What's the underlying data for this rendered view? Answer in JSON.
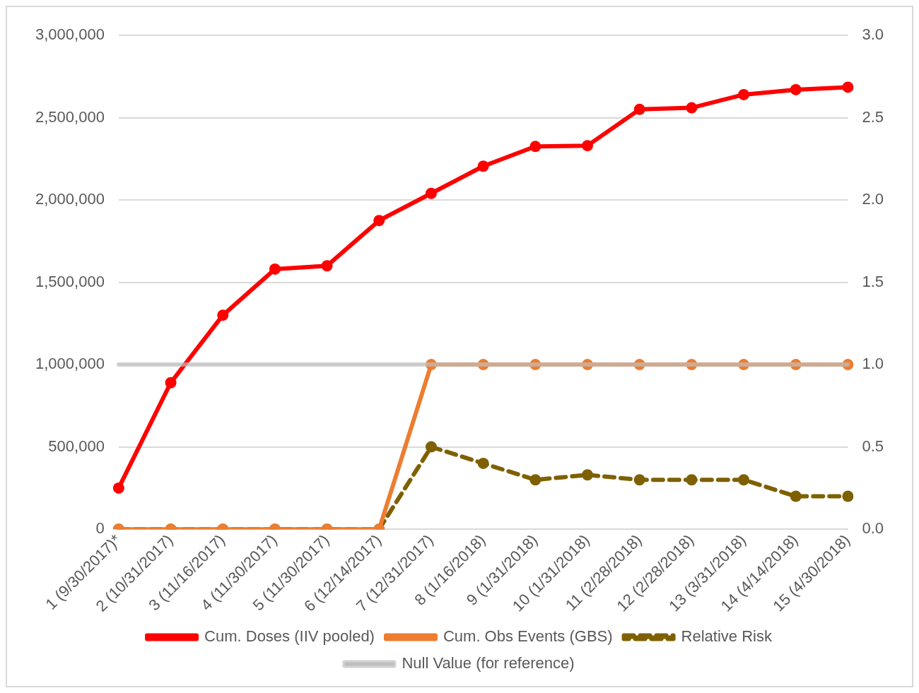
{
  "chart_data": {
    "type": "line",
    "categories": [
      "1 (9/30/2017)*",
      "2 (10/31/2017)",
      "3 (11/16/2017)",
      "4 (11/30/2017)",
      "5 (11/30/2017)",
      "6 (12/14/2017)",
      "7 (12/31/2017)",
      "8 (1/16/2018)",
      "9 (1/31/2018)",
      "10 (1/31/2018)",
      "11 (2/28/2018)",
      "12 (2/28/2018)",
      "13 (3/31/2018)",
      "14 (4/14/2018)",
      "15 (4/30/2018)"
    ],
    "series": [
      {
        "name": "Cum. Doses (IIV pooled)",
        "color": "#ff0000",
        "marker": "circle",
        "line_style": "solid",
        "values": [
          250000,
          890000,
          1300000,
          1580000,
          1600000,
          1875000,
          2040000,
          2205000,
          2325000,
          2330000,
          2550000,
          2560000,
          2640000,
          2670000,
          2685000
        ]
      },
      {
        "name": "Cum. Obs Events (GBS)",
        "color": "#ed7d31",
        "axis": "y2",
        "marker": "circle",
        "line_style": "solid",
        "values": [
          0,
          0,
          0,
          0,
          0,
          0,
          1,
          1,
          1,
          1,
          1,
          1,
          1,
          1,
          1
        ]
      },
      {
        "name": "Relative Risk",
        "color": "#7f6000",
        "axis": "y2",
        "marker": "circle",
        "line_style": "dashed",
        "values": [
          0,
          0,
          0,
          0,
          0,
          0,
          0.5,
          0.4,
          0.3,
          0.33,
          0.3,
          0.3,
          0.3,
          0.2,
          0.2
        ]
      },
      {
        "name": "Null Value (for reference)",
        "color": "#bfbfbf",
        "axis": "y2",
        "marker": "none",
        "line_style": "solid",
        "values": [
          1,
          1,
          1,
          1,
          1,
          1,
          1,
          1,
          1,
          1,
          1,
          1,
          1,
          1,
          1
        ]
      }
    ],
    "ylim": [
      0,
      3000000
    ],
    "yticks": [
      {
        "value": 0,
        "label": "0"
      },
      {
        "value": 500000,
        "label": "500,000"
      },
      {
        "value": 1000000,
        "label": "1,000,000"
      },
      {
        "value": 1500000,
        "label": "1,500,000"
      },
      {
        "value": 2000000,
        "label": "2,000,000"
      },
      {
        "value": 2500000,
        "label": "2,500,000"
      },
      {
        "value": 3000000,
        "label": "3,000,000"
      }
    ],
    "y2lim": [
      0,
      3
    ],
    "y2ticks": [
      {
        "value": 0,
        "label": "0.0"
      },
      {
        "value": 0.5,
        "label": "0.5"
      },
      {
        "value": 1,
        "label": "1.0"
      },
      {
        "value": 1.5,
        "label": "1.5"
      },
      {
        "value": 2,
        "label": "2.0"
      },
      {
        "value": 2.5,
        "label": "2.5"
      },
      {
        "value": 3,
        "label": "3.0"
      }
    ],
    "grid": "y",
    "legend": "bottom"
  }
}
